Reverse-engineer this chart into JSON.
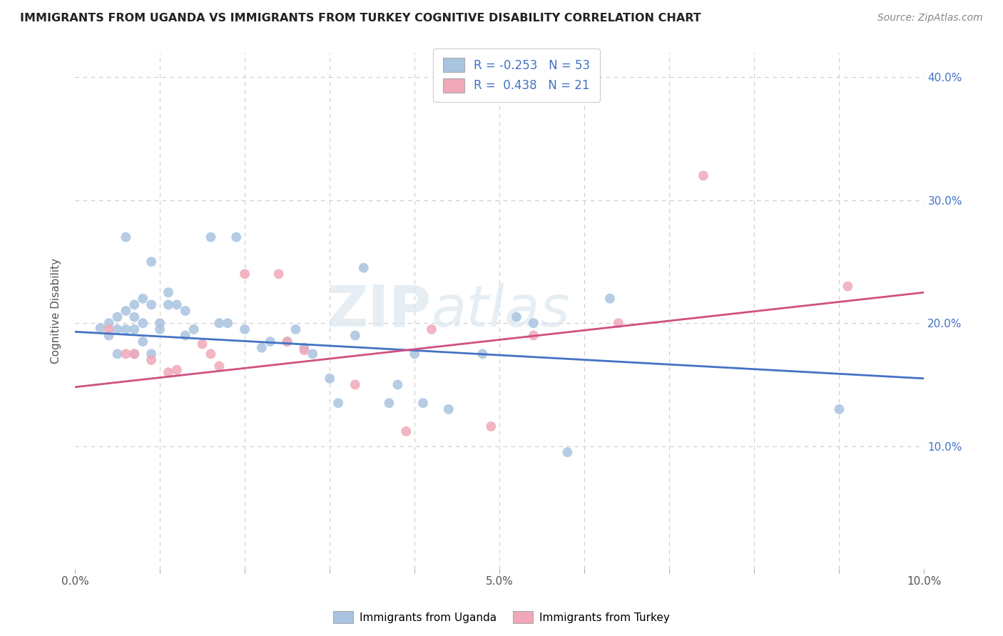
{
  "title": "IMMIGRANTS FROM UGANDA VS IMMIGRANTS FROM TURKEY COGNITIVE DISABILITY CORRELATION CHART",
  "source": "Source: ZipAtlas.com",
  "ylabel": "Cognitive Disability",
  "xlim": [
    0.0,
    0.1
  ],
  "ylim": [
    0.0,
    0.42
  ],
  "color_uganda": "#a8c4e0",
  "color_turkey": "#f0a8b8",
  "color_line_uganda": "#4472c4",
  "color_line_turkey": "#d05080",
  "color_axis_right": "#4472c4",
  "watermark_zip": "ZIP",
  "watermark_atlas": "atlas",
  "bg_color": "#ffffff",
  "grid_color": "#cccccc",
  "uganda_x": [
    0.003,
    0.004,
    0.004,
    0.005,
    0.005,
    0.005,
    0.006,
    0.006,
    0.006,
    0.007,
    0.007,
    0.007,
    0.007,
    0.008,
    0.008,
    0.008,
    0.009,
    0.009,
    0.009,
    0.01,
    0.01,
    0.011,
    0.011,
    0.012,
    0.013,
    0.013,
    0.014,
    0.016,
    0.017,
    0.018,
    0.019,
    0.02,
    0.022,
    0.023,
    0.025,
    0.026,
    0.027,
    0.028,
    0.03,
    0.031,
    0.033,
    0.034,
    0.037,
    0.038,
    0.04,
    0.041,
    0.044,
    0.048,
    0.052,
    0.054,
    0.058,
    0.063,
    0.09
  ],
  "uganda_y": [
    0.196,
    0.2,
    0.19,
    0.205,
    0.195,
    0.175,
    0.27,
    0.21,
    0.195,
    0.215,
    0.205,
    0.195,
    0.175,
    0.22,
    0.2,
    0.185,
    0.25,
    0.215,
    0.175,
    0.2,
    0.195,
    0.225,
    0.215,
    0.215,
    0.21,
    0.19,
    0.195,
    0.27,
    0.2,
    0.2,
    0.27,
    0.195,
    0.18,
    0.185,
    0.185,
    0.195,
    0.18,
    0.175,
    0.155,
    0.135,
    0.19,
    0.245,
    0.135,
    0.15,
    0.175,
    0.135,
    0.13,
    0.175,
    0.205,
    0.2,
    0.095,
    0.22,
    0.13
  ],
  "turkey_x": [
    0.004,
    0.006,
    0.007,
    0.009,
    0.011,
    0.012,
    0.015,
    0.016,
    0.017,
    0.02,
    0.024,
    0.025,
    0.027,
    0.033,
    0.039,
    0.042,
    0.049,
    0.054,
    0.064,
    0.074,
    0.091
  ],
  "turkey_y": [
    0.195,
    0.175,
    0.175,
    0.17,
    0.16,
    0.162,
    0.183,
    0.175,
    0.165,
    0.24,
    0.24,
    0.185,
    0.178,
    0.15,
    0.112,
    0.195,
    0.116,
    0.19,
    0.2,
    0.32,
    0.23
  ],
  "line_uganda_x0": 0.0,
  "line_uganda_x1": 0.1,
  "line_uganda_y0": 0.193,
  "line_uganda_y1": 0.155,
  "line_turkey_x0": 0.0,
  "line_turkey_x1": 0.1,
  "line_turkey_y0": 0.148,
  "line_turkey_y1": 0.225
}
